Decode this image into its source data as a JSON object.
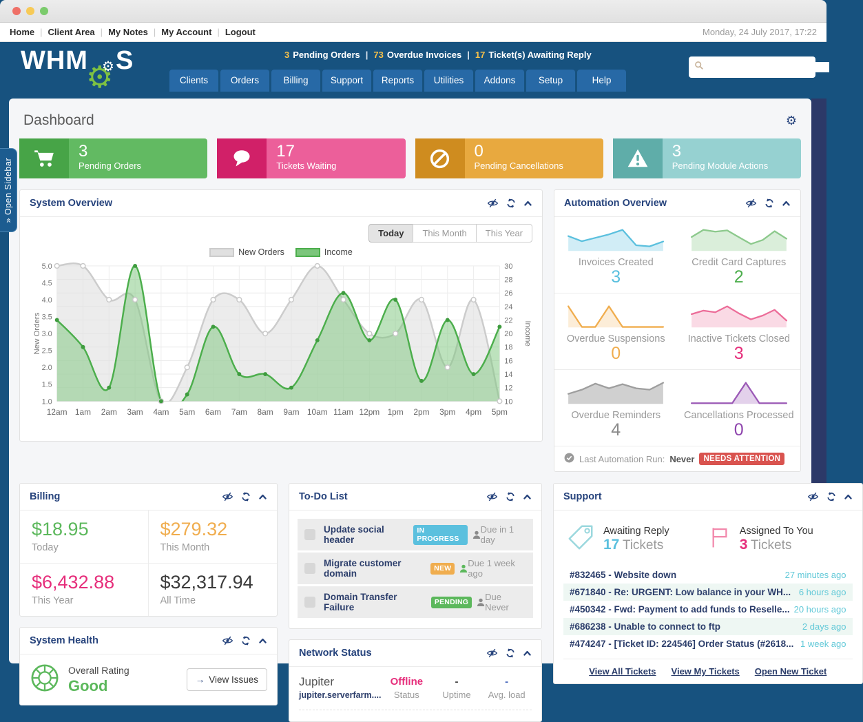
{
  "window": {
    "date": "Monday, 24 July 2017, 17:22"
  },
  "topbar": {
    "links": [
      "Home",
      "Client Area",
      "My Notes",
      "My Account",
      "Logout"
    ],
    "divider": "|"
  },
  "header": {
    "logo_prefix": "WHM",
    "logo_suffix": "S",
    "alerts": [
      {
        "count": "3",
        "label": "Pending Orders"
      },
      {
        "count": "73",
        "label": "Overdue Invoices"
      },
      {
        "count": "17",
        "label": "Ticket(s) Awaiting Reply"
      }
    ],
    "alert_divider": "|",
    "nav": [
      "Clients",
      "Orders",
      "Billing",
      "Support",
      "Reports",
      "Utilities",
      "Addons",
      "Setup",
      "Help"
    ],
    "search_placeholder": ""
  },
  "sidebar_tab": {
    "chevrons": "»",
    "label": "Open Sidebar"
  },
  "page": {
    "title": "Dashboard"
  },
  "stat_cards": [
    {
      "value": "3",
      "label": "Pending Orders",
      "icon": "cart-icon",
      "icon_bg": "#47a447",
      "body_bg": "#62ba62"
    },
    {
      "value": "17",
      "label": "Tickets Waiting",
      "icon": "chat-icon",
      "icon_bg": "#d12068",
      "body_bg": "#ec5f9a"
    },
    {
      "value": "0",
      "label": "Pending Cancellations",
      "icon": "ban-icon",
      "icon_bg": "#cf8c1f",
      "body_bg": "#e8a93f"
    },
    {
      "value": "3",
      "label": "Pending Module Actions",
      "icon": "warning-icon",
      "icon_bg": "#5fada9",
      "body_bg": "#96d1d1"
    }
  ],
  "system_overview": {
    "title": "System Overview",
    "buttons": [
      "Today",
      "This Month",
      "This Year"
    ],
    "active_button": "Today"
  },
  "chart_data": {
    "type": "area-line",
    "x": [
      "12am",
      "1am",
      "2am",
      "3am",
      "4am",
      "5am",
      "6am",
      "7am",
      "8am",
      "9am",
      "10am",
      "11am",
      "12pm",
      "1pm",
      "2pm",
      "3pm",
      "4pm",
      "5pm"
    ],
    "series": [
      {
        "name": "New Orders",
        "axis": "left",
        "values": [
          5,
          5,
          4,
          4,
          1,
          2,
          4,
          4,
          3,
          4,
          5,
          4,
          3,
          3,
          4,
          2,
          4,
          1
        ],
        "color": "#cccccc",
        "fill": "#e0e0e0"
      },
      {
        "name": "Income",
        "axis": "right",
        "values": [
          22,
          18,
          12,
          30,
          10,
          11,
          21,
          14,
          14,
          12,
          19,
          26,
          19,
          25,
          13,
          22,
          14,
          21
        ],
        "color": "#4cae4c",
        "fill": "#7cc67c"
      }
    ],
    "left_axis": {
      "label": "New Orders",
      "min": 1,
      "max": 5,
      "step": 0.5
    },
    "right_axis": {
      "label": "Income",
      "min": 10,
      "max": 30,
      "step": 2
    },
    "grid": true,
    "legend_position": "top"
  },
  "automation": {
    "title": "Automation Overview",
    "cells": [
      {
        "label": "Invoices Created",
        "value": "3",
        "value_color": "#5bc0de",
        "line": "#5bc0de",
        "fill": "rgba(91,192,222,0.28)",
        "spark": [
          5.2,
          3.4,
          4.6,
          5.8,
          7.4,
          2.0,
          1.6,
          3.3
        ]
      },
      {
        "label": "Credit Card Captures",
        "value": "2",
        "value_color": "#4cae4c",
        "line": "#8cc98c",
        "fill": "rgba(140,201,140,0.32)",
        "spark": [
          5.2,
          7.9,
          7.2,
          7.7,
          5.1,
          2.6,
          4.1,
          7.4,
          4.6
        ]
      },
      {
        "label": "Overdue Suspensions",
        "value": "0",
        "value_color": "#f0ad4e",
        "line": "#f0ad4e",
        "fill": "rgba(240,173,78,0.22)",
        "spark": [
          9.5,
          0.2,
          0.2,
          9.5,
          0.2,
          0.2,
          0.2,
          0.2
        ]
      },
      {
        "label": "Inactive Tickets Closed",
        "value": "3",
        "value_color": "#e62e7b",
        "line": "#ec6d99",
        "fill": "rgba(236,109,153,0.25)",
        "spark": [
          5.6,
          7.1,
          6.4,
          8.9,
          5.9,
          3.4,
          5.0,
          7.4,
          2.9
        ]
      },
      {
        "label": "Overdue Reminders",
        "value": "4",
        "value_color": "#8a8a8a",
        "line": "#9e9e9e",
        "fill": "rgba(170,170,170,0.55)",
        "spark": [
          3.6,
          5.1,
          7.3,
          5.6,
          7.1,
          5.6,
          5.1,
          7.6
        ]
      },
      {
        "label": "Cancellations Processed",
        "value": "0",
        "value_color": "#8e44ad",
        "line": "#9b59b6",
        "fill": "rgba(155,89,182,0.28)",
        "spark": [
          0.3,
          0.3,
          0.3,
          0.3,
          9.5,
          0.3,
          0.3,
          0.3
        ]
      }
    ],
    "footer": {
      "label": "Last Automation Run:",
      "value": "Never",
      "badge": "NEEDS ATTENTION",
      "badge_color": "#d9534f"
    }
  },
  "billing": {
    "title": "Billing",
    "entries": [
      {
        "amount": "$18.95",
        "label": "Today",
        "color": "#5cb85c"
      },
      {
        "amount": "$279.32",
        "label": "This Month",
        "color": "#f0ad4e"
      },
      {
        "amount": "$6,432.88",
        "label": "This Year",
        "color": "#e62e7b"
      },
      {
        "amount": "$32,317.94",
        "label": "All Time",
        "color": "#3b3b3b"
      }
    ]
  },
  "todo": {
    "title": "To-Do List",
    "items": [
      {
        "title": "Update social header",
        "badge": "IN PROGRESS",
        "badge_color": "#5bc0de",
        "due": "Due in 1 day",
        "assignee_color": "#8a8a8a"
      },
      {
        "title": "Migrate customer domain",
        "badge": "NEW",
        "badge_color": "#f0ad4e",
        "due": "Due 1 week ago",
        "assignee_color": "#5cb85c"
      },
      {
        "title": "Domain Transfer Failure",
        "badge": "PENDING",
        "badge_color": "#5cb85c",
        "due": "Due Never",
        "assignee_color": "#8a8a8a"
      }
    ]
  },
  "network": {
    "title": "Network Status",
    "server": {
      "name": "Jupiter",
      "host": "jupiter.serverfarm....",
      "stats": [
        {
          "value": "Offline",
          "label": "Status",
          "color": "#e62e7b"
        },
        {
          "value": "-",
          "label": "Uptime",
          "color": "#444444"
        },
        {
          "value": "-",
          "label": "Avg. load",
          "color": "#4a69bd"
        }
      ]
    }
  },
  "support": {
    "title": "Support",
    "stats": [
      {
        "label": "Awaiting Reply",
        "value": "17",
        "unit": "Tickets",
        "color": "#5bc0de",
        "icon": "tag-icon"
      },
      {
        "label": "Assigned To You",
        "value": "3",
        "unit": "Tickets",
        "color": "#e62e7b",
        "icon": "flag-icon"
      }
    ],
    "tickets": [
      {
        "title": "#832465 - Website down",
        "time": "27 minutes ago"
      },
      {
        "title": "#671840 - Re: URGENT: Low balance in your WH...",
        "time": "6 hours ago"
      },
      {
        "title": "#450342 - Fwd: Payment to add funds to Reselle...",
        "time": "20 hours ago"
      },
      {
        "title": "#686238 - Unable to connect to ftp",
        "time": "2 days ago"
      },
      {
        "title": "#474247 - [Ticket ID: 224546] Order Status (#2618...",
        "time": "1 week ago"
      }
    ],
    "links": [
      "View All Tickets",
      "View My Tickets",
      "Open New Ticket"
    ]
  },
  "system_health": {
    "title": "System Health",
    "rating_label": "Overall Rating",
    "rating": "Good",
    "rating_color": "#5cb85c",
    "button": "View Issues",
    "button_arrow": "→"
  }
}
